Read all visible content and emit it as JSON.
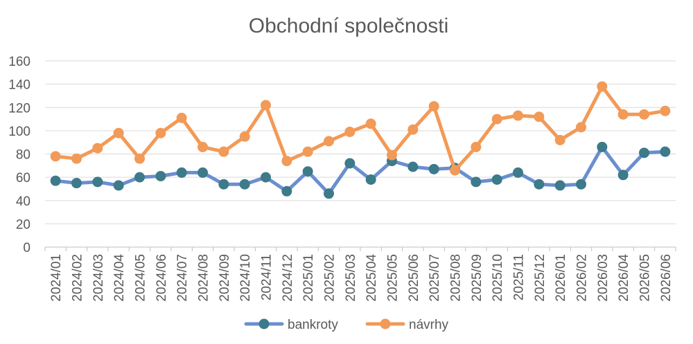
{
  "chart_data": {
    "type": "line",
    "title": "Obchodní společnosti",
    "xlabel": "",
    "ylabel": "",
    "ylim": [
      0,
      160
    ],
    "yticks": [
      0,
      20,
      40,
      60,
      80,
      100,
      120,
      140,
      160
    ],
    "grid": true,
    "legend_position": "bottom",
    "categories": [
      "2024/01",
      "2024/02",
      "2024/03",
      "2024/04",
      "2024/05",
      "2024/06",
      "2024/07",
      "2024/08",
      "2024/09",
      "2024/10",
      "2024/11",
      "2024/12",
      "2025/01",
      "2025/02",
      "2025/03",
      "2025/04",
      "2025/05",
      "2025/06",
      "2025/07",
      "2025/08",
      "2025/09",
      "2025/10",
      "2025/11",
      "2025/12",
      "2026/01",
      "2026/02",
      "2026/03",
      "2026/04",
      "2026/05",
      "2026/06"
    ],
    "series": [
      {
        "name": "bankroty",
        "color": "#6a8fd0",
        "marker_color": "#3d7a8a",
        "values": [
          57,
          55,
          56,
          53,
          60,
          61,
          64,
          64,
          54,
          54,
          60,
          48,
          65,
          46,
          72,
          58,
          74,
          69,
          67,
          68,
          56,
          58,
          64,
          54,
          53,
          54,
          86,
          62,
          81,
          82
        ]
      },
      {
        "name": "návrhy",
        "color": "#f29a57",
        "marker_color": "#f29a57",
        "values": [
          78,
          76,
          85,
          98,
          76,
          98,
          111,
          86,
          82,
          95,
          122,
          74,
          82,
          91,
          99,
          106,
          79,
          101,
          121,
          66,
          86,
          110,
          113,
          112,
          92,
          103,
          138,
          114,
          114,
          117
        ]
      }
    ]
  }
}
